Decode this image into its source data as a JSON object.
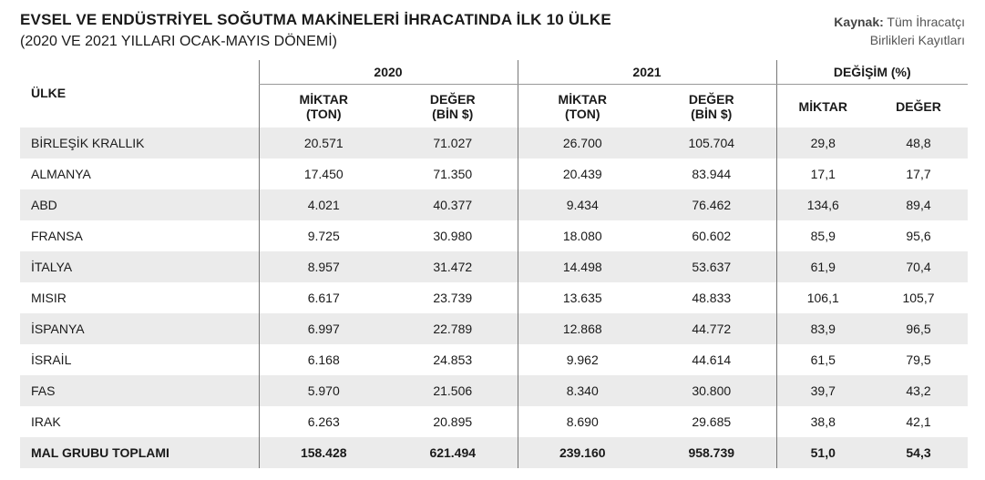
{
  "header": {
    "title": "EVSEL VE ENDÜSTRİYEL SOĞUTMA MAKİNELERİ İHRACATINDA İLK 10 ÜLKE",
    "subtitle": "(2020 VE 2021 YILLARI OCAK-MAYIS DÖNEMİ)",
    "source_label": "Kaynak:",
    "source_text_line1": "Tüm İhracatçı",
    "source_text_line2": "Birlikleri Kayıtları"
  },
  "table": {
    "country_header": "ÜLKE",
    "group_2020": "2020",
    "group_2021": "2021",
    "group_change": "DEĞİŞİM (%)",
    "miktar_line1": "MİKTAR",
    "miktar_line2": "(TON)",
    "deger_line1": "DEĞER",
    "deger_line2": "(BİN $)",
    "change_miktar": "MİKTAR",
    "change_deger": "DEĞER",
    "rows": [
      {
        "country": "BİRLEŞİK KRALLIK",
        "m2020": "20.571",
        "d2020": "71.027",
        "m2021": "26.700",
        "d2021": "105.704",
        "cm": "29,8",
        "cd": "48,8"
      },
      {
        "country": "ALMANYA",
        "m2020": "17.450",
        "d2020": "71.350",
        "m2021": "20.439",
        "d2021": "83.944",
        "cm": "17,1",
        "cd": "17,7"
      },
      {
        "country": "ABD",
        "m2020": "4.021",
        "d2020": "40.377",
        "m2021": "9.434",
        "d2021": "76.462",
        "cm": "134,6",
        "cd": "89,4"
      },
      {
        "country": "FRANSA",
        "m2020": "9.725",
        "d2020": "30.980",
        "m2021": "18.080",
        "d2021": "60.602",
        "cm": "85,9",
        "cd": "95,6"
      },
      {
        "country": "İTALYA",
        "m2020": "8.957",
        "d2020": "31.472",
        "m2021": "14.498",
        "d2021": "53.637",
        "cm": "61,9",
        "cd": "70,4"
      },
      {
        "country": "MISIR",
        "m2020": "6.617",
        "d2020": "23.739",
        "m2021": "13.635",
        "d2021": "48.833",
        "cm": "106,1",
        "cd": "105,7"
      },
      {
        "country": "İSPANYA",
        "m2020": "6.997",
        "d2020": "22.789",
        "m2021": "12.868",
        "d2021": "44.772",
        "cm": "83,9",
        "cd": "96,5"
      },
      {
        "country": "İSRAİL",
        "m2020": "6.168",
        "d2020": "24.853",
        "m2021": "9.962",
        "d2021": "44.614",
        "cm": "61,5",
        "cd": "79,5"
      },
      {
        "country": "FAS",
        "m2020": "5.970",
        "d2020": "21.506",
        "m2021": "8.340",
        "d2021": "30.800",
        "cm": "39,7",
        "cd": "43,2"
      },
      {
        "country": "IRAK",
        "m2020": "6.263",
        "d2020": "20.895",
        "m2021": "8.690",
        "d2021": "29.685",
        "cm": "38,8",
        "cd": "42,1"
      }
    ],
    "total": {
      "country": "MAL GRUBU TOPLAMI",
      "m2020": "158.428",
      "d2020": "621.494",
      "m2021": "239.160",
      "d2021": "958.739",
      "cm": "51,0",
      "cd": "54,3"
    }
  }
}
